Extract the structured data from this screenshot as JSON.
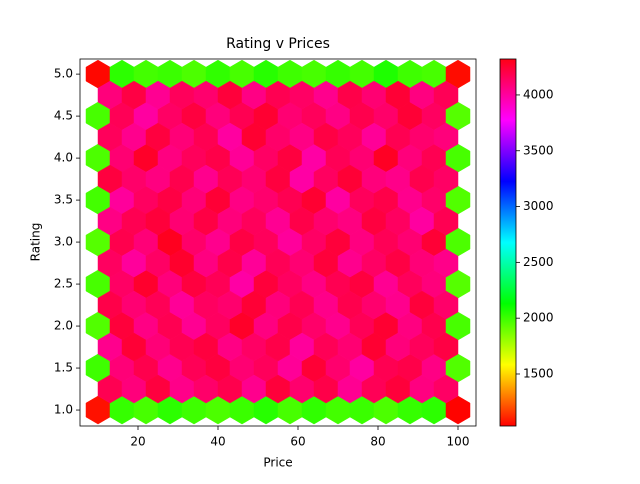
{
  "chart_data": {
    "type": "hexbin",
    "title": "Rating v Prices",
    "x_label": "Price",
    "y_label": "Rating",
    "extent": [
      10,
      100,
      1,
      5
    ],
    "gridsize": 15,
    "colormap": "hsv",
    "clim": [
      1034,
      4322
    ],
    "xlim": [
      5.5,
      104.5
    ],
    "ylim": [
      0.81,
      5.18
    ],
    "xticks": [
      20,
      40,
      60,
      80,
      100
    ],
    "yticks": [
      {
        "value": 1,
        "label": "1.0"
      },
      1.5,
      {
        "value": 2,
        "label": "2.0"
      },
      2.5,
      {
        "value": 3,
        "label": "3.0"
      },
      3.5,
      {
        "value": 4,
        "label": "4.0"
      },
      4.5,
      {
        "value": 5,
        "label": "5.0"
      }
    ],
    "colorbar_ticks": [
      1500,
      2000,
      2500,
      3000,
      3500,
      4000
    ],
    "values": [
      [
        1050,
        2050,
        2000,
        2020,
        1980,
        2040,
        1990,
        2060,
        2010,
        1990,
        2030,
        2000,
        2080,
        2010,
        1990,
        1060
      ],
      [
        1990,
        4180,
        4020,
        4150,
        4230,
        4100,
        4190,
        4260,
        4120,
        4170,
        4080,
        4200,
        4140,
        4250,
        4160,
        1960
      ],
      [
        1980,
        4120,
        4280,
        4090,
        4170,
        4210,
        4040,
        4150,
        4230,
        4010,
        4180,
        4120,
        4290,
        4100,
        4190,
        1990
      ],
      [
        2000,
        4030,
        4160,
        4220,
        4110,
        4250,
        4080,
        4130,
        4190,
        4260,
        4020,
        4170,
        4210,
        4060,
        4140,
        1970
      ],
      [
        1960,
        4200,
        4110,
        4300,
        4140,
        4060,
        4220,
        4170,
        4030,
        4150,
        4240,
        4090,
        4180,
        4120,
        4250,
        1980
      ],
      [
        1990,
        4150,
        4270,
        4100,
        4230,
        4180,
        4010,
        4240,
        4160,
        4080,
        4190,
        4230,
        4050,
        4170,
        4100,
        1960
      ],
      [
        1970,
        4240,
        4080,
        4190,
        4050,
        4160,
        4280,
        4090,
        4210,
        4140,
        4060,
        4180,
        4260,
        4090,
        4200,
        1990
      ],
      [
        2010,
        4110,
        4200,
        4060,
        4180,
        4230,
        4120,
        4170,
        4040,
        4250,
        4130,
        4020,
        4190,
        4210,
        4080,
        1970
      ],
      [
        1070,
        2030,
        1990,
        2050,
        2010,
        1980,
        2020,
        2060,
        1990,
        2040,
        2000,
        2020,
        1980,
        2030,
        2050,
        1040
      ]
    ],
    "offset_values": [
      [
        4100,
        4220,
        4050,
        4170,
        4130,
        4240,
        4080,
        4190,
        4150,
        4060,
        4210,
        4120,
        4250,
        4090,
        4180
      ],
      [
        4170,
        4060,
        4230,
        4110,
        4190,
        4020,
        4260,
        4140,
        4080,
        4220,
        4170,
        4040,
        4190,
        4130,
        4100
      ],
      [
        4230,
        4140,
        4090,
        4200,
        4060,
        4180,
        4120,
        4230,
        4010,
        4160,
        4250,
        4100,
        4070,
        4200,
        4150
      ],
      [
        4080,
        4190,
        4240,
        4120,
        4220,
        4100,
        4170,
        4050,
        4210,
        4130,
        4090,
        4230,
        4160,
        4020,
        4190
      ],
      [
        4160,
        4030,
        4150,
        4270,
        4090,
        4210,
        4040,
        4180,
        4120,
        4240,
        4060,
        4150,
        4220,
        4110,
        4070
      ],
      [
        4210,
        4120,
        4180,
        4040,
        4160,
        4130,
        4250,
        4100,
        4190,
        4070,
        4200,
        4130,
        4060,
        4240,
        4140
      ],
      [
        4060,
        4250,
        4110,
        4190,
        4230,
        4080,
        4150,
        4210,
        4030,
        4180,
        4120,
        4260,
        4100,
        4170,
        4220
      ],
      [
        4190,
        4100,
        4230,
        4070,
        4140,
        4200,
        4060,
        4240,
        4130,
        4210,
        4050,
        4180,
        4240,
        4090,
        4150
      ]
    ]
  }
}
